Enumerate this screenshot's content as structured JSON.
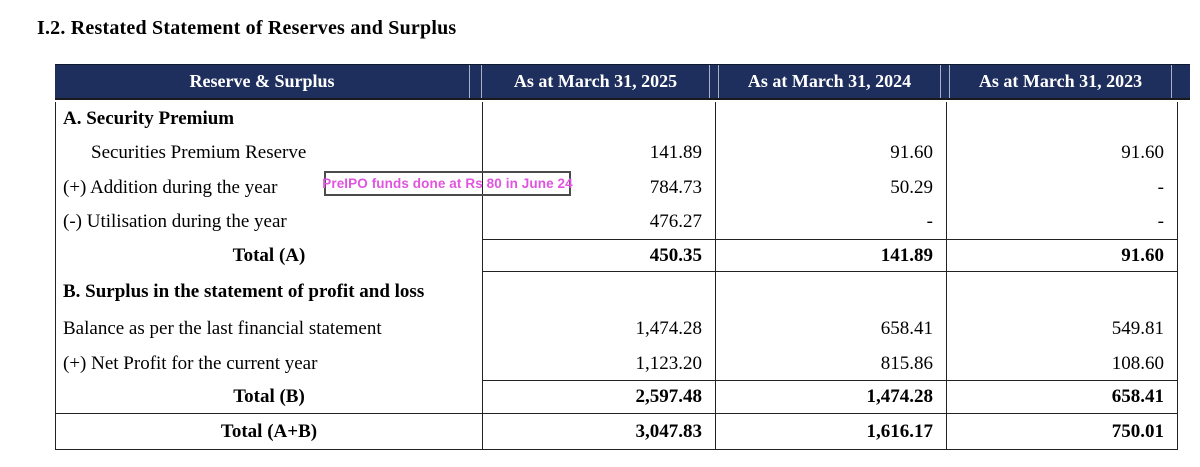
{
  "title": "I.2. Restated Statement of Reserves and Surplus",
  "colors": {
    "header_bg": "#1e2f5e",
    "header_text": "#ffffff",
    "annotation_text": "#e054e0",
    "grid_line": "#222222"
  },
  "table": {
    "header": {
      "label": "Reserve & Surplus",
      "col_2025": "As at March 31, 2025",
      "col_2024": "As at March 31, 2024",
      "col_2023": "As at March 31, 2023"
    },
    "rows": [
      {
        "label": "A. Security Premium",
        "style": "section",
        "v2025": "",
        "v2024": "",
        "v2023": ""
      },
      {
        "label": "Securities Premium Reserve",
        "style": "indent",
        "v2025": "141.89",
        "v2024": "91.60",
        "v2023": "91.60"
      },
      {
        "label": "(+) Addition during the year",
        "style": "normal",
        "v2025": "784.73",
        "v2024": "50.29",
        "v2023": "-"
      },
      {
        "label": "(-) Utilisation during the year",
        "style": "normal",
        "v2025": "476.27",
        "v2024": "-",
        "v2023": "-"
      },
      {
        "label": "Total (A)",
        "style": "total",
        "v2025": "450.35",
        "v2024": "141.89",
        "v2023": "91.60"
      },
      {
        "label": "B. Surplus in the statement of profit and loss",
        "style": "section",
        "v2025": "",
        "v2024": "",
        "v2023": ""
      },
      {
        "label": "Balance as per the last financial statement",
        "style": "normal",
        "v2025": "1,474.28",
        "v2024": "658.41",
        "v2023": "549.81"
      },
      {
        "label": "(+) Net Profit for the current year",
        "style": "normal",
        "v2025": "1,123.20",
        "v2024": "815.86",
        "v2023": "108.60"
      },
      {
        "label": "Total (B)",
        "style": "total",
        "v2025": "2,597.48",
        "v2024": "1,474.28",
        "v2023": "658.41"
      },
      {
        "label": "Total (A+B)",
        "style": "grand-total",
        "v2025": "3,047.83",
        "v2024": "1,616.17",
        "v2023": "750.01"
      }
    ]
  },
  "annotation": {
    "text": "PreIPO funds done at Rs 80 in June 24"
  }
}
